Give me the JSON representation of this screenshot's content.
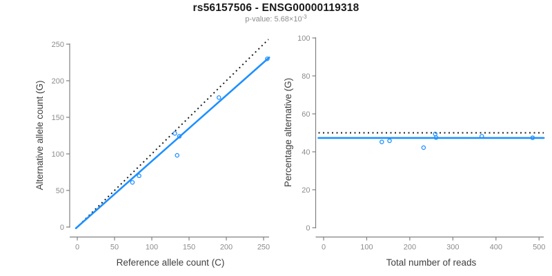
{
  "header": {
    "title": "rs56157506 - ENSG00000119318",
    "subtitle_prefix": "p-value: 5.68×10",
    "subtitle_exponent": "-3"
  },
  "colors": {
    "accent_blue": "#1E90FF",
    "dotted_line_black": "#1a1a1a",
    "axis_line_gray": "#808080",
    "tick_label_gray": "#8c8c8c",
    "axis_title_dark": "#404040",
    "background": "#ffffff"
  },
  "chart_data": [
    {
      "type": "scatter",
      "panel": "left",
      "xlabel": "Reference allele count (C)",
      "ylabel": "Alternative allele count (G)",
      "xlim": [
        0,
        255
      ],
      "ylim": [
        0,
        255
      ],
      "xticks": [
        0,
        50,
        100,
        150,
        200,
        250
      ],
      "yticks": [
        0,
        50,
        100,
        150,
        200,
        250
      ],
      "grid": false,
      "legend": "none",
      "points": [
        [
          74,
          61
        ],
        [
          83,
          70
        ],
        [
          134,
          98
        ],
        [
          131,
          128
        ],
        [
          137,
          124
        ],
        [
          190,
          177
        ],
        [
          255,
          230
        ]
      ],
      "lines": [
        {
          "name": "identity-line",
          "style": "dotted",
          "color": "#1a1a1a",
          "slope": 1,
          "intercept": 0
        },
        {
          "name": "fit-line",
          "style": "solid",
          "color": "#1E90FF",
          "slope": 0.9,
          "intercept": 0
        }
      ]
    },
    {
      "type": "scatter",
      "panel": "right",
      "xlabel": "Total number of reads",
      "ylabel": "Percentage alternative (G)",
      "xlim": [
        0,
        500
      ],
      "ylim": [
        0,
        100
      ],
      "xticks": [
        0,
        100,
        200,
        300,
        400,
        500
      ],
      "yticks": [
        0,
        20,
        40,
        60,
        80,
        100
      ],
      "grid": false,
      "legend": "none",
      "points": [
        [
          135,
          45.2
        ],
        [
          153,
          45.8
        ],
        [
          232,
          42.2
        ],
        [
          259,
          49.4
        ],
        [
          261,
          47.5
        ],
        [
          367,
          48.2
        ],
        [
          485,
          47.4
        ]
      ],
      "lines": [
        {
          "name": "expected-line",
          "style": "dotted",
          "color": "#1a1a1a",
          "slope": 0,
          "intercept": 50
        },
        {
          "name": "fit-line",
          "style": "solid",
          "color": "#1E90FF",
          "slope": 0,
          "intercept": 47.3
        }
      ]
    }
  ]
}
